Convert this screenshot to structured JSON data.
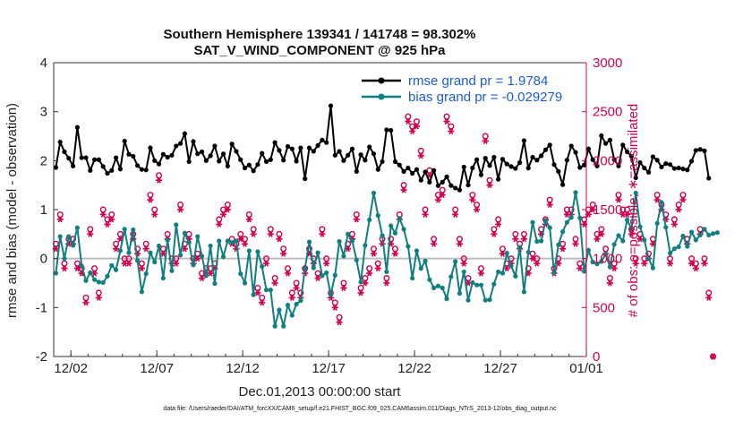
{
  "colors": {
    "rmse": "#000000",
    "bias": "#0f7f7f",
    "obs": "#d3004f",
    "zero_line": "#bdbdbd",
    "legend_text": "#1c5cd6"
  },
  "chart_data": {
    "type": "line",
    "title": "Southern Hemisphere 139341 / 141748 = 98.302%",
    "subtitle": "SAT_V_WIND_COMPONENT @ 925 hPa",
    "xlabel": "Dec.01,2013 00:00:00 start",
    "ylabel_left": "rmse and bias (model - observation)",
    "ylabel_right": "# of obs: o=possible; ∗=assimilated",
    "xlim": [
      0,
      31
    ],
    "ylim_left": [
      -2,
      4
    ],
    "ylim_right": [
      0,
      3000
    ],
    "x_ticks": [
      {
        "x": 1,
        "label": "12/02"
      },
      {
        "x": 6,
        "label": "12/07"
      },
      {
        "x": 11,
        "label": "12/12"
      },
      {
        "x": 16,
        "label": "12/17"
      },
      {
        "x": 21,
        "label": "12/22"
      },
      {
        "x": 26,
        "label": "12/27"
      },
      {
        "x": 31,
        "label": "01/01"
      }
    ],
    "y_ticks_left": [
      -2,
      -1,
      0,
      1,
      2,
      3,
      4
    ],
    "y_ticks_right": [
      0,
      500,
      1000,
      1500,
      2000,
      2500,
      3000
    ],
    "legend": {
      "placement": "top-right",
      "entries": [
        "rmse grand pr = 1.9784",
        "bias grand pr = -0.029279"
      ]
    },
    "x_step": 0.25,
    "x_start": 0.125,
    "series": [
      {
        "name": "rmse",
        "axis": "left",
        "values": [
          1.86,
          2.38,
          2.18,
          2.05,
          1.89,
          2.68,
          2.06,
          2.06,
          1.8,
          2.02,
          2.02,
          1.88,
          1.74,
          1.8,
          2.06,
          1.83,
          2.4,
          2.13,
          2.09,
          1.9,
          1.82,
          1.81,
          2.26,
          2.0,
          1.93,
          2.13,
          2.07,
          2.11,
          2.3,
          2.35,
          2.55,
          1.98,
          2.39,
          2.14,
          2.18,
          2.0,
          2.1,
          2.3,
          1.99,
          2.14,
          1.89,
          2.34,
          2.19,
          2.02,
          1.85,
          1.91,
          1.79,
          1.92,
          2.15,
          1.98,
          2.02,
          2.37,
          2.21,
          2.01,
          2.29,
          2.24,
          1.99,
          2.26,
          1.63,
          2.26,
          2.19,
          2.31,
          2.42,
          2.37,
          3.12,
          2.11,
          2.19,
          2.0,
          2.11,
          2.24,
          1.78,
          2.12,
          2.01,
          2.28,
          2.14,
          1.82,
          1.98,
          2.63,
          2.62,
          1.98,
          1.91,
          1.78,
          1.85,
          1.74,
          1.82,
          1.6,
          1.77,
          1.56,
          1.8,
          1.49,
          1.56,
          1.67,
          1.49,
          1.44,
          1.4,
          1.87,
          1.5,
          1.85,
          2.02,
          1.71,
          2.05,
          1.9,
          2.07,
          1.62,
          2.03,
          1.93,
          1.88,
          1.84,
          1.96,
          2.41,
          1.85,
          2.07,
          2.01,
          2.1,
          2.22,
          2.32,
          1.92,
          1.78,
          1.51,
          2.01,
          2.3,
          2.17,
          1.86,
          1.91,
          2.24,
          2.02,
          1.89,
          2.51,
          2.35,
          2.42,
          2.02,
          1.89,
          2.32,
          2.18,
          2.09,
          1.65,
          1.96,
          1.85,
          1.76,
          2.08,
          2.01,
          1.87,
          1.94,
          1.92,
          1.84,
          1.85,
          1.83,
          1.81,
          1.99,
          2.21,
          2.23,
          2.2,
          1.64
        ]
      },
      {
        "name": "bias",
        "axis": "left",
        "values": [
          -0.3,
          0.45,
          0.0,
          0.45,
          0.27,
          0.63,
          -0.15,
          -0.45,
          -0.29,
          -0.43,
          -0.48,
          -0.49,
          -0.36,
          -0.14,
          -0.23,
          0.16,
          0.6,
          0.12,
          0.59,
          -0.04,
          -0.68,
          -0.31,
          0.12,
          -0.07,
          0.26,
          -0.4,
          0.38,
          -0.25,
          0.69,
          0.07,
          0.52,
          0.33,
          -0.13,
          0.45,
          0.05,
          -0.35,
          0.26,
          -0.51,
          0.36,
          0.04,
          0.36,
          0.33,
          0.36,
          -0.31,
          -0.5,
          0.16,
          -0.74,
          0.14,
          -0.16,
          -0.64,
          -0.64,
          -1.38,
          -1.05,
          -1.38,
          -0.95,
          -1.16,
          -0.93,
          -0.86,
          -0.2,
          0.34,
          -0.19,
          0.12,
          -0.35,
          -0.29,
          -0.74,
          -0.34,
          0.35,
          0.05,
          0.5,
          0.36,
          -0.03,
          -0.48,
          0.27,
          0.79,
          1.34,
          0.88,
          0.47,
          -0.27,
          0.67,
          0.52,
          0.82,
          0.6,
          0.25,
          -0.4,
          0.16,
          -0.2,
          -0.05,
          -0.43,
          -0.6,
          -0.56,
          -0.6,
          -0.82,
          -0.37,
          -0.06,
          -0.71,
          -0.27,
          -0.85,
          -0.49,
          -0.54,
          -0.54,
          -0.85,
          -0.84,
          -0.52,
          -0.27,
          -0.3,
          0.11,
          -0.15,
          -0.36,
          0.23,
          -0.68,
          0.13,
          0.74,
          0.35,
          0.36,
          0.78,
          0.63,
          -0.29,
          0.28,
          0.55,
          0.74,
          0.84,
          1.35,
          0.83,
          -0.26,
          0.17,
          -0.07,
          -0.11,
          -0.06,
          0.09,
          -0.17,
          0.29,
          0.47,
          0.36,
          0.79,
          0.61,
          1.34,
          0.65,
          0.38,
          0.0,
          -0.19,
          0.72,
          1.15,
          0.64,
          0.11,
          0.2,
          0.24,
          0.46,
          0.25,
          0.54,
          0.38,
          0.48,
          0.6,
          0.48,
          0.51,
          0.53
        ]
      },
      {
        "name": "possible",
        "axis": "right",
        "marker": "o",
        "values": [
          1150,
          1450,
          950,
          1200,
          1200,
          950,
          900,
          600,
          1300,
          900,
          650,
          1500,
          1400,
          1450,
          1150,
          1250,
          1000,
          1000,
          1250,
          1100,
          950,
          1150,
          1650,
          1500,
          1850,
          1100,
          1250,
          1000,
          1000,
          1550,
          1150,
          1250,
          1000,
          1050,
          850,
          900,
          900,
          950,
          1400,
          1500,
          1550,
          1200,
          1150,
          1250,
          1200,
          1450,
          1300,
          700,
          600,
          1000,
          1300,
          800,
          1250,
          1100,
          900,
          650,
          750,
          650,
          900,
          1100,
          1000,
          850,
          1300,
          1000,
          650,
          550,
          400,
          750,
          1150,
          1250,
          1450,
          700,
          800,
          900,
          1100,
          950,
          1200,
          800,
          1200,
          1100,
          1450,
          1750,
          2450,
          2350,
          2400,
          2100,
          1500,
          1900,
          1200,
          1650,
          1700,
          2450,
          2350,
          1500,
          1200,
          1000,
          800,
          1650,
          1550,
          900,
          2250,
          1800,
          1300,
          1400,
          1100,
          950,
          1000,
          1250,
          1150,
          1250,
          900,
          1050,
          1000,
          1300,
          1400,
          1600,
          900,
          1000,
          1150,
          1500,
          1500,
          1200,
          950,
          1400,
          1500,
          1550,
          1250,
          1300,
          1100,
          800,
          950,
          1650,
          1500,
          1500,
          1300,
          1000,
          1250,
          1000,
          1050,
          1200,
          1650,
          1550,
          1450,
          1000,
          1400,
          1550,
          1650,
          1200,
          1000,
          950,
          1300,
          1000,
          650,
          0
        ]
      },
      {
        "name": "assimilated",
        "axis": "right",
        "marker": "*",
        "values": [
          1100,
          1400,
          900,
          1150,
          1150,
          900,
          850,
          550,
          1250,
          850,
          600,
          1450,
          1350,
          1400,
          1100,
          1200,
          950,
          950,
          1200,
          1050,
          900,
          1100,
          1600,
          1450,
          1800,
          1050,
          1200,
          950,
          950,
          1500,
          1100,
          1200,
          950,
          1000,
          800,
          850,
          850,
          900,
          1350,
          1450,
          1500,
          1150,
          1100,
          1200,
          1150,
          1400,
          1250,
          650,
          550,
          950,
          1250,
          750,
          1200,
          1050,
          850,
          600,
          700,
          600,
          850,
          1050,
          950,
          800,
          1250,
          950,
          600,
          500,
          350,
          700,
          1100,
          1200,
          1400,
          650,
          750,
          850,
          1050,
          900,
          1150,
          750,
          1150,
          1050,
          1400,
          1700,
          2400,
          2300,
          2350,
          2050,
          1450,
          1850,
          1150,
          1600,
          1650,
          2400,
          2300,
          1450,
          1150,
          950,
          750,
          1600,
          1500,
          850,
          2200,
          1750,
          1250,
          1350,
          1050,
          900,
          950,
          1200,
          1100,
          1200,
          850,
          1000,
          950,
          1250,
          1350,
          1550,
          850,
          950,
          1100,
          1450,
          1450,
          1150,
          900,
          1350,
          1450,
          1500,
          1200,
          1250,
          1050,
          750,
          900,
          1600,
          1450,
          1450,
          1250,
          950,
          1200,
          950,
          1000,
          1150,
          1600,
          1500,
          1400,
          950,
          1350,
          1500,
          1600,
          1150,
          950,
          900,
          1250,
          950,
          600,
          0
        ]
      }
    ]
  },
  "footer": "data file: /Users/raeder/DAI/ATM_forcXX/CAM6_setup/f.e21.FHIST_BGC.f09_025.CAM6assim.011/Diags_NTrS_2013-12/obs_diag_output.nc"
}
